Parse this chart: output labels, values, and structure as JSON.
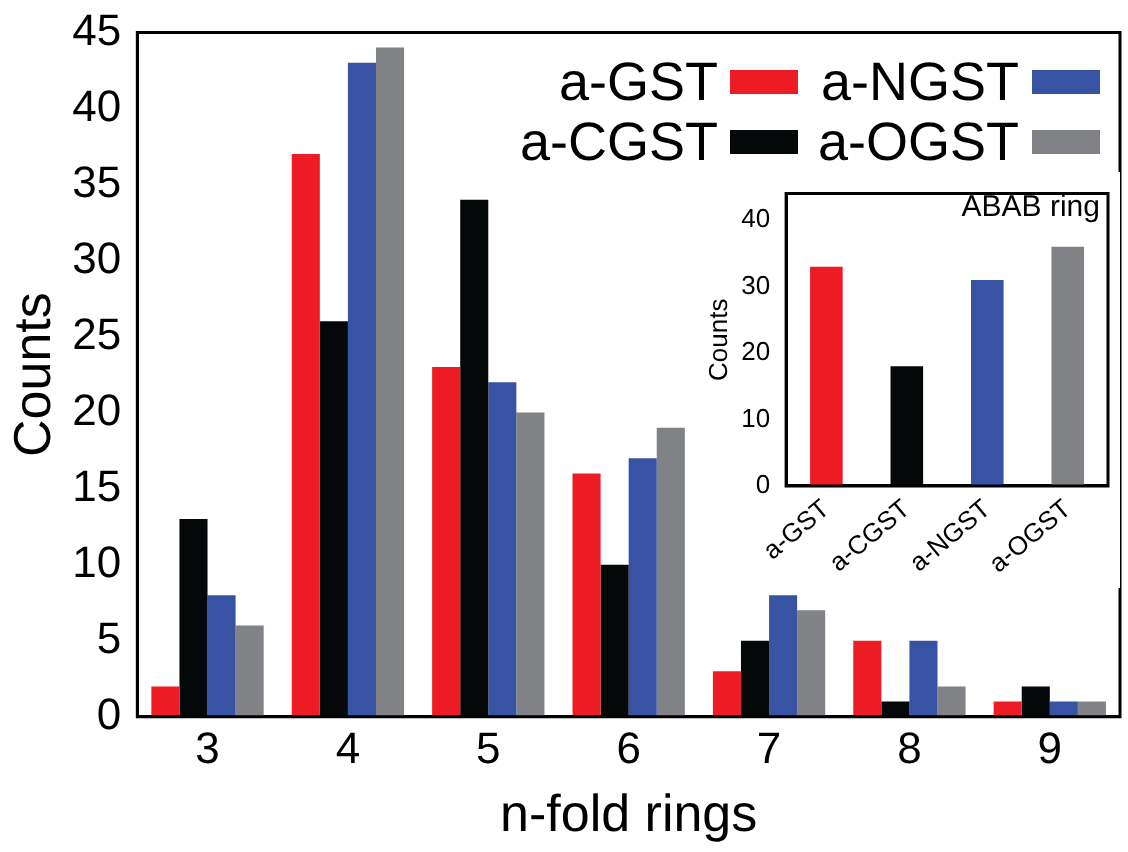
{
  "chart_data": [
    {
      "type": "bar",
      "xlabel": "n-fold rings",
      "ylabel": "Counts",
      "categories": [
        "3",
        "4",
        "5",
        "6",
        "7",
        "8",
        "9"
      ],
      "ylim": [
        0,
        45
      ],
      "yticks": [
        0,
        5,
        10,
        15,
        20,
        25,
        30,
        35,
        40,
        45
      ],
      "grid": false,
      "legend": "top right",
      "series": [
        {
          "name": "a-GST",
          "color": "#ed1c24",
          "values": [
            2,
            37,
            23,
            16,
            3,
            5,
            1
          ]
        },
        {
          "name": "a-CGST",
          "color": "#050808",
          "values": [
            13,
            26,
            34,
            10,
            5,
            1,
            2
          ]
        },
        {
          "name": "a-NGST",
          "color": "#3853a4",
          "values": [
            8,
            43,
            22,
            17,
            8,
            5,
            1
          ]
        },
        {
          "name": "a-OGST",
          "color": "#808285",
          "values": [
            6,
            44,
            20,
            19,
            7,
            2,
            1
          ]
        }
      ]
    },
    {
      "type": "bar",
      "ylabel": "Counts",
      "annotations": [
        "ABAB ring"
      ],
      "categories": [
        "a-GST",
        "a-CGST",
        "a-NGST",
        "a-OGST"
      ],
      "values": [
        33,
        18,
        31,
        36
      ],
      "colors": [
        "#ed1c24",
        "#050808",
        "#3853a4",
        "#808285"
      ],
      "ylim": [
        0,
        44
      ],
      "yticks": [
        0,
        10,
        20,
        30,
        40
      ],
      "grid": false
    }
  ]
}
